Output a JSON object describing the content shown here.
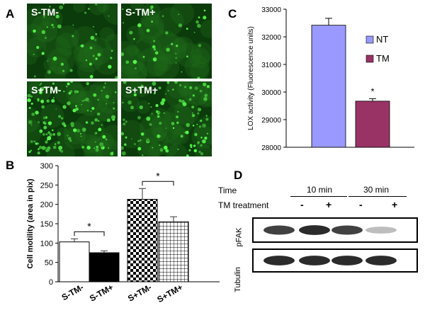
{
  "panels": {
    "a": {
      "letter": "A",
      "images": [
        {
          "label": "S-TM-"
        },
        {
          "label": "S-TM+"
        },
        {
          "label": "S+TM-"
        },
        {
          "label": "S+TM+"
        }
      ]
    },
    "b": {
      "letter": "B"
    },
    "c": {
      "letter": "C"
    },
    "d": {
      "letter": "D",
      "time_label": "Time",
      "treatment_label": "TM treatment",
      "time_groups": [
        "10 min",
        "30 min"
      ],
      "treatment_signs": [
        "-",
        "+",
        "-",
        "+"
      ],
      "blots": [
        {
          "label": "pFAK",
          "intensity": [
            0.85,
            0.95,
            0.85,
            0.3
          ]
        },
        {
          "label": "Tubulin",
          "intensity": [
            0.95,
            0.95,
            0.95,
            0.95
          ]
        }
      ]
    }
  },
  "chart_data": [
    {
      "type": "bar",
      "panel": "B",
      "categories": [
        "S-TM-",
        "S-TM+",
        "S+TM-",
        "S+TM+"
      ],
      "values": [
        103,
        75,
        213,
        155
      ],
      "errors": [
        8,
        5,
        28,
        13
      ],
      "fills": [
        "white",
        "black",
        "checker",
        "grid"
      ],
      "ylabel": "Cell motility (area in pix)",
      "ylim": [
        0,
        300
      ],
      "yticks": [
        "0",
        "50",
        "100",
        "150",
        "200",
        "250",
        "300"
      ],
      "significance": [
        {
          "between": [
            0,
            1
          ],
          "label": "*"
        },
        {
          "between": [
            2,
            3
          ],
          "label": "*"
        }
      ]
    },
    {
      "type": "bar",
      "panel": "C",
      "categories": [
        "NT",
        "TM"
      ],
      "values": [
        32420,
        29670
      ],
      "errors": [
        250,
        90
      ],
      "colors": [
        "#9999ff",
        "#993366"
      ],
      "ylabel": "LOX activity (Fluorescence units)",
      "ylim": [
        28000,
        33000
      ],
      "yticks": [
        "28000",
        "29000",
        "30000",
        "31000",
        "32000",
        "33000"
      ],
      "legend": [
        "NT",
        "TM"
      ],
      "annotations": [
        {
          "bar": 1,
          "label": "*"
        }
      ]
    }
  ]
}
